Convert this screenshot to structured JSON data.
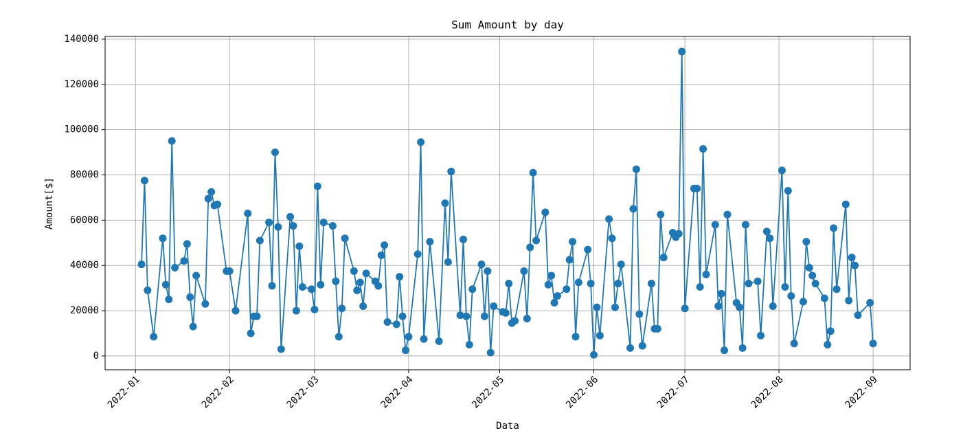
{
  "chart_data": {
    "type": "line",
    "title": "Sum Amount by day",
    "x_label": "Data",
    "y_label": "Amount[$]",
    "color": "#1f77b4",
    "grid": true,
    "x": [
      2,
      3,
      4,
      6,
      9,
      10,
      11,
      12,
      13,
      16,
      17,
      18,
      19,
      20,
      23,
      24,
      25,
      26,
      27,
      30,
      31,
      33,
      37,
      38,
      39,
      40,
      41,
      44,
      45,
      46,
      47,
      48,
      51,
      52,
      53,
      54,
      55,
      58,
      59,
      60,
      61,
      62,
      65,
      66,
      67,
      68,
      69,
      72,
      73,
      74,
      75,
      76,
      79,
      80,
      81,
      82,
      83,
      86,
      87,
      88,
      89,
      90,
      93,
      94,
      95,
      97,
      100,
      102,
      103,
      104,
      107,
      108,
      109,
      110,
      111,
      114,
      115,
      116,
      117,
      118,
      121,
      122,
      123,
      124,
      125,
      128,
      129,
      130,
      131,
      132,
      135,
      136,
      137,
      138,
      139,
      142,
      143,
      144,
      145,
      146,
      149,
      150,
      151,
      152,
      153,
      156,
      157,
      158,
      159,
      160,
      163,
      164,
      165,
      166,
      167,
      170,
      171,
      172,
      173,
      174,
      177,
      178,
      179,
      180,
      181,
      184,
      185,
      186,
      187,
      188,
      191,
      192,
      193,
      194,
      195,
      198,
      199,
      200,
      201,
      202,
      205,
      206,
      208,
      209,
      210,
      213,
      214,
      215,
      216,
      217,
      220,
      221,
      222,
      223,
      224,
      227,
      228,
      229,
      230,
      231,
      234,
      235,
      236,
      237,
      238,
      242,
      243
    ],
    "values": [
      40500,
      77500,
      29000,
      8500,
      52000,
      31500,
      25000,
      95000,
      39000,
      42000,
      49500,
      26000,
      13000,
      35500,
      23000,
      69500,
      72500,
      66500,
      67000,
      37500,
      37500,
      20000,
      63000,
      10000,
      17500,
      17500,
      51000,
      59000,
      31000,
      90000,
      57000,
      3000,
      61500,
      57500,
      20000,
      48500,
      30500,
      29500,
      20500,
      75000,
      31500,
      59000,
      57500,
      33000,
      8500,
      21000,
      52000,
      37500,
      29000,
      32500,
      22000,
      36500,
      33000,
      31000,
      44500,
      49000,
      15000,
      14000,
      35000,
      17500,
      2500,
      8500,
      45000,
      94500,
      7500,
      50500,
      6500,
      67500,
      41500,
      81500,
      18000,
      51500,
      17500,
      5000,
      29500,
      40500,
      17500,
      37500,
      1500,
      22000,
      19500,
      19000,
      32000,
      14500,
      15500,
      37500,
      16500,
      48000,
      81000,
      51000,
      63500,
      31500,
      35500,
      23500,
      26500,
      29500,
      42500,
      50500,
      8500,
      32500,
      47000,
      32000,
      500,
      21500,
      9000,
      60500,
      52000,
      21500,
      32000,
      40500,
      3500,
      65000,
      82500,
      18500,
      4500,
      32000,
      12000,
      12000,
      62500,
      43500,
      54500,
      52500,
      54000,
      134500,
      21000,
      74000,
      74000,
      30500,
      91500,
      36000,
      58000,
      22000,
      27500,
      2500,
      62500,
      23500,
      21500,
      3500,
      58000,
      32000,
      33000,
      9000,
      55000,
      52000,
      22000,
      82000,
      30500,
      73000,
      26500,
      5500,
      24000,
      50500,
      39000,
      35500,
      32000,
      25500,
      5000,
      11000,
      56500,
      29500,
      67000,
      24500,
      43500,
      40000,
      18000,
      23500,
      5500
    ],
    "xlim": [
      -10,
      255.2
    ],
    "xticks": [
      {
        "value": 0,
        "label": "2022-01"
      },
      {
        "value": 31,
        "label": "2022-02"
      },
      {
        "value": 59,
        "label": "2022-03"
      },
      {
        "value": 90,
        "label": "2022-04"
      },
      {
        "value": 120,
        "label": "2022-05"
      },
      {
        "value": 151,
        "label": "2022-06"
      },
      {
        "value": 181,
        "label": "2022-07"
      },
      {
        "value": 212,
        "label": "2022-08"
      },
      {
        "value": 243,
        "label": "2022-09"
      }
    ],
    "ylim": [
      -6100,
      141200
    ],
    "yticks": [
      0,
      20000,
      40000,
      60000,
      80000,
      100000,
      120000,
      140000
    ]
  }
}
